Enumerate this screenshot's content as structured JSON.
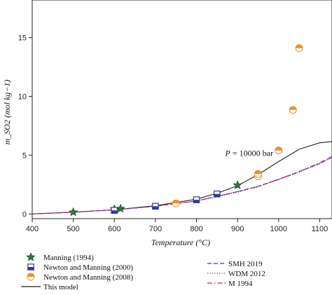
{
  "chart_data": {
    "type": "scatter",
    "xlabel": "Temperature (°C)",
    "ylabel": "m_SO2 (mol kg−1)",
    "xlim": [
      400,
      1130
    ],
    "ylim": [
      -0.4,
      18.2
    ],
    "xticks": [
      400,
      500,
      600,
      700,
      800,
      900,
      1000,
      1100
    ],
    "yticks": [
      0,
      5,
      10,
      15
    ],
    "annotation": {
      "label": "P",
      "text": " = 10000 bar",
      "x": 870,
      "y": 4.95
    },
    "legend_position": "bottom",
    "series": [
      {
        "name": "Manning (1994)",
        "kind": "points",
        "marker": "star",
        "color": "#2e7d32",
        "points": [
          [
            500,
            0.15
          ],
          [
            600,
            0.4
          ],
          [
            615,
            0.45
          ],
          [
            900,
            2.45
          ]
        ]
      },
      {
        "name": "Newton and Manning (2000)",
        "kind": "points",
        "marker": "half-square",
        "color": "#2b3a9a",
        "points": [
          [
            600,
            0.3
          ],
          [
            700,
            0.65
          ],
          [
            800,
            1.2
          ],
          [
            850,
            1.7
          ]
        ]
      },
      {
        "name": "Newton and Manning (2008)",
        "kind": "points",
        "marker": "half-circle",
        "color": "#f28c28",
        "points": [
          [
            750,
            0.9
          ],
          [
            950,
            3.2
          ],
          [
            950,
            3.4
          ],
          [
            1000,
            5.4
          ],
          [
            1035,
            8.85
          ],
          [
            1050,
            14.1
          ]
        ]
      },
      {
        "name": "This model",
        "kind": "line",
        "dash": "solid",
        "color": "#222222",
        "points": [
          [
            400,
            0.0
          ],
          [
            500,
            0.15
          ],
          [
            600,
            0.35
          ],
          [
            700,
            0.7
          ],
          [
            800,
            1.25
          ],
          [
            850,
            1.75
          ],
          [
            900,
            2.4
          ],
          [
            950,
            3.35
          ],
          [
            1000,
            4.45
          ],
          [
            1050,
            5.5
          ],
          [
            1100,
            6.05
          ],
          [
            1130,
            6.15
          ]
        ]
      },
      {
        "name": "SMH 2019",
        "kind": "line",
        "dash": "dashed",
        "color": "#3b3fb0",
        "points": [
          [
            400,
            0.0
          ],
          [
            500,
            0.15
          ],
          [
            600,
            0.35
          ],
          [
            700,
            0.65
          ],
          [
            800,
            1.1
          ],
          [
            850,
            1.5
          ],
          [
            900,
            1.9
          ],
          [
            950,
            2.35
          ],
          [
            1000,
            2.95
          ],
          [
            1050,
            3.6
          ],
          [
            1100,
            4.3
          ],
          [
            1130,
            4.85
          ]
        ]
      },
      {
        "name": "WDM 2012",
        "kind": "line",
        "dash": "dotted",
        "color": "#444444",
        "points": [
          [
            400,
            0.0
          ],
          [
            500,
            0.15
          ],
          [
            600,
            0.35
          ],
          [
            700,
            0.65
          ],
          [
            800,
            1.1
          ],
          [
            850,
            1.45
          ],
          [
            900,
            1.85
          ],
          [
            950,
            2.3
          ],
          [
            1000,
            2.9
          ],
          [
            1050,
            3.55
          ],
          [
            1100,
            4.25
          ],
          [
            1130,
            4.8
          ]
        ]
      },
      {
        "name": "M 1994",
        "kind": "line",
        "dash": "dashdot",
        "color": "#c2187a",
        "points": [
          [
            400,
            0.0
          ],
          [
            500,
            0.15
          ],
          [
            600,
            0.35
          ],
          [
            700,
            0.65
          ],
          [
            800,
            1.1
          ],
          [
            850,
            1.5
          ],
          [
            900,
            1.9
          ],
          [
            950,
            2.35
          ],
          [
            1000,
            2.95
          ],
          [
            1050,
            3.6
          ],
          [
            1100,
            4.35
          ],
          [
            1130,
            4.9
          ]
        ]
      }
    ]
  }
}
